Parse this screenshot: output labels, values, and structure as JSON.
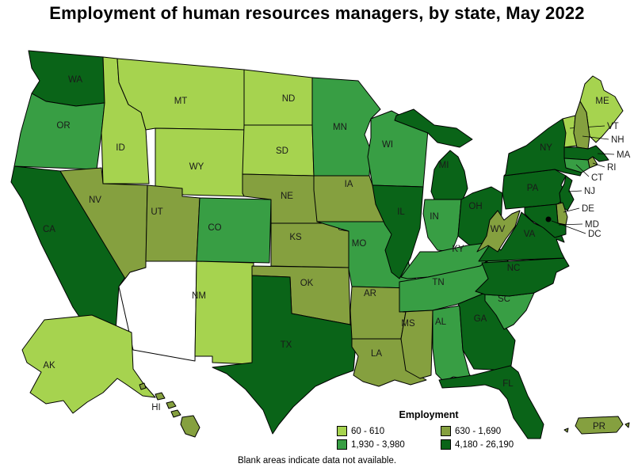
{
  "title": "Employment of human resources managers, by state, May 2022",
  "legend": {
    "title": "Employment",
    "items": [
      {
        "label": "60 - 610",
        "color": "#a6d34f"
      },
      {
        "label": "630 - 1,690",
        "color": "#85a03f"
      },
      {
        "label": "1,930 - 3,980",
        "color": "#389e44"
      },
      {
        "label": "4,180 - 26,190",
        "color": "#0a6418"
      }
    ]
  },
  "footnote": "Blank areas indicate data not available.",
  "map": {
    "no_data_color": "#ffffff",
    "border_color": "#000000",
    "dc_marker_color": "#000000",
    "label_color": "#1a1a1a",
    "states": [
      {
        "abbr": "WA",
        "label": "WA",
        "category": 3
      },
      {
        "abbr": "OR",
        "label": "OR",
        "category": 2
      },
      {
        "abbr": "CA",
        "label": "CA",
        "category": 3
      },
      {
        "abbr": "NV",
        "label": "NV",
        "category": 1
      },
      {
        "abbr": "ID",
        "label": "ID",
        "category": 0
      },
      {
        "abbr": "MT",
        "label": "MT",
        "category": 0
      },
      {
        "abbr": "WY",
        "label": "WY",
        "category": 0
      },
      {
        "abbr": "UT",
        "label": "UT",
        "category": 1
      },
      {
        "abbr": "CO",
        "label": "CO",
        "category": 2
      },
      {
        "abbr": "AZ",
        "label": "",
        "category": null
      },
      {
        "abbr": "NM",
        "label": "NM",
        "category": 0
      },
      {
        "abbr": "AK",
        "label": "AK",
        "category": 0
      },
      {
        "abbr": "HI",
        "label": "HI",
        "category": 1
      },
      {
        "abbr": "ND",
        "label": "ND",
        "category": 0
      },
      {
        "abbr": "SD",
        "label": "SD",
        "category": 0
      },
      {
        "abbr": "NE",
        "label": "NE",
        "category": 1
      },
      {
        "abbr": "KS",
        "label": "KS",
        "category": 1
      },
      {
        "abbr": "OK",
        "label": "OK",
        "category": 1
      },
      {
        "abbr": "TX",
        "label": "TX",
        "category": 3
      },
      {
        "abbr": "MN",
        "label": "MN",
        "category": 2
      },
      {
        "abbr": "IA",
        "label": "IA",
        "category": 1
      },
      {
        "abbr": "MO",
        "label": "MO",
        "category": 2
      },
      {
        "abbr": "AR",
        "label": "AR",
        "category": 1
      },
      {
        "abbr": "LA",
        "label": "LA",
        "category": 1
      },
      {
        "abbr": "WI",
        "label": "WI",
        "category": 2
      },
      {
        "abbr": "IL",
        "label": "IL",
        "category": 3
      },
      {
        "abbr": "MI",
        "label": "MI",
        "category": 3
      },
      {
        "abbr": "IN",
        "label": "IN",
        "category": 2
      },
      {
        "abbr": "OH",
        "label": "OH",
        "category": 3
      },
      {
        "abbr": "KY",
        "label": "KY",
        "category": 2
      },
      {
        "abbr": "TN",
        "label": "TN",
        "category": 2
      },
      {
        "abbr": "MS",
        "label": "MS",
        "category": 1
      },
      {
        "abbr": "AL",
        "label": "AL",
        "category": 2
      },
      {
        "abbr": "GA",
        "label": "GA",
        "category": 3
      },
      {
        "abbr": "FL",
        "label": "FL",
        "category": 3
      },
      {
        "abbr": "SC",
        "label": "SC",
        "category": 2
      },
      {
        "abbr": "NC",
        "label": "NC",
        "category": 3
      },
      {
        "abbr": "VA",
        "label": "VA",
        "category": 3
      },
      {
        "abbr": "WV",
        "label": "WV",
        "category": 1
      },
      {
        "abbr": "PA",
        "label": "PA",
        "category": 3
      },
      {
        "abbr": "NY",
        "label": "NY",
        "category": 3
      },
      {
        "abbr": "ME",
        "label": "ME",
        "category": 0
      },
      {
        "abbr": "VT",
        "label": "VT",
        "category": 0
      },
      {
        "abbr": "NH",
        "label": "NH",
        "category": 1
      },
      {
        "abbr": "MA",
        "label": "MA",
        "category": 3
      },
      {
        "abbr": "RI",
        "label": "RI",
        "category": 1
      },
      {
        "abbr": "CT",
        "label": "CT",
        "category": 2
      },
      {
        "abbr": "NJ",
        "label": "NJ",
        "category": 3
      },
      {
        "abbr": "DE",
        "label": "DE",
        "category": 1
      },
      {
        "abbr": "MD",
        "label": "MD",
        "category": 3
      },
      {
        "abbr": "DC",
        "label": "DC",
        "category": null,
        "marker": true
      },
      {
        "abbr": "PR",
        "label": "PR",
        "category": 1
      }
    ]
  }
}
